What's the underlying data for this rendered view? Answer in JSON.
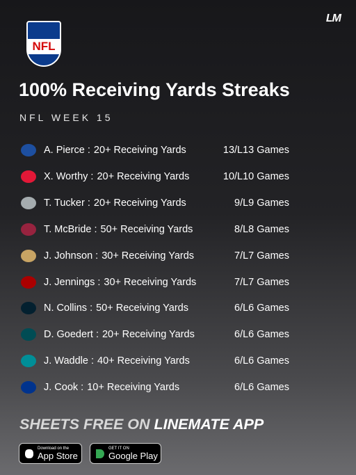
{
  "logo_text": "LM",
  "nfl_shield": "NFL",
  "header": {
    "title": "100% Receiving Yards Streaks",
    "subtitle": "NFL WEEK 15"
  },
  "table": {
    "rows": [
      [
        "A. Pierce :",
        "20+ Receiving Yards",
        "13/L13 Games"
      ],
      [
        "X. Worthy :",
        "20+ Receiving Yards",
        "10/L10 Games"
      ],
      [
        "T. Tucker :",
        "20+ Receiving Yards",
        "9/L9 Games"
      ],
      [
        "T. McBride :",
        "50+ Receiving Yards",
        "8/L8 Games"
      ],
      [
        "J. Johnson :",
        "30+ Receiving Yards",
        "7/L7 Games"
      ],
      [
        "J. Jennings :",
        "30+ Receiving Yards",
        "7/L7 Games"
      ],
      [
        "N. Collins :",
        "50+ Receiving Yards",
        "6/L6 Games"
      ],
      [
        "D. Goedert :",
        "20+ Receiving Yards",
        "6/L6 Games"
      ],
      [
        "J. Waddle :",
        "40+ Receiving Yards",
        "6/L6 Games"
      ],
      [
        "J. Cook :",
        "10+ Receiving Yards",
        "6/L6 Games"
      ]
    ]
  },
  "footer": {
    "text_a": "SHEETS FREE ON",
    "text_b": "LINEMATE APP",
    "badges": [
      {
        "small": "Download on the",
        "big": "App Store"
      },
      {
        "small": "GET IT ON",
        "big": "Google Play"
      }
    ]
  }
}
